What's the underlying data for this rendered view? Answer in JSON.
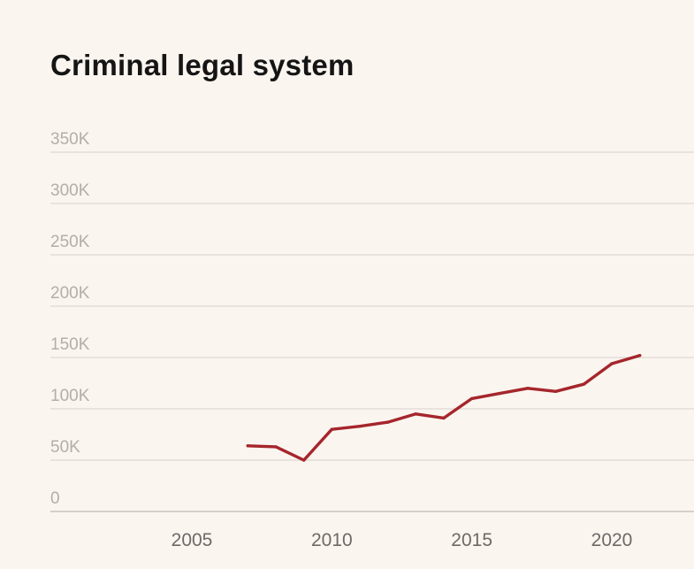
{
  "chart_data": {
    "type": "line",
    "title": "Criminal legal system",
    "xlabel": "",
    "ylabel": "",
    "y_ticks": [
      0,
      50000,
      100000,
      150000,
      200000,
      250000,
      300000,
      350000
    ],
    "y_tick_labels": [
      "0",
      "50K",
      "100K",
      "150K",
      "200K",
      "250K",
      "300K",
      "350K"
    ],
    "x_ticks": [
      2005,
      2010,
      2015,
      2020
    ],
    "x_tick_labels": [
      "2005",
      "2010",
      "2015",
      "2020"
    ],
    "xlim": [
      2002,
      2024
    ],
    "ylim": [
      0,
      350000
    ],
    "grid": true,
    "series": [
      {
        "name": "",
        "color": "#a5262b",
        "x": [
          2007,
          2008,
          2009,
          2010,
          2011,
          2012,
          2013,
          2014,
          2015,
          2016,
          2017,
          2018,
          2019,
          2020,
          2021
        ],
        "y": [
          64000,
          63000,
          50000,
          80000,
          83000,
          87000,
          95000,
          91000,
          110000,
          115000,
          120000,
          117000,
          124000,
          144000,
          152000
        ]
      }
    ]
  }
}
